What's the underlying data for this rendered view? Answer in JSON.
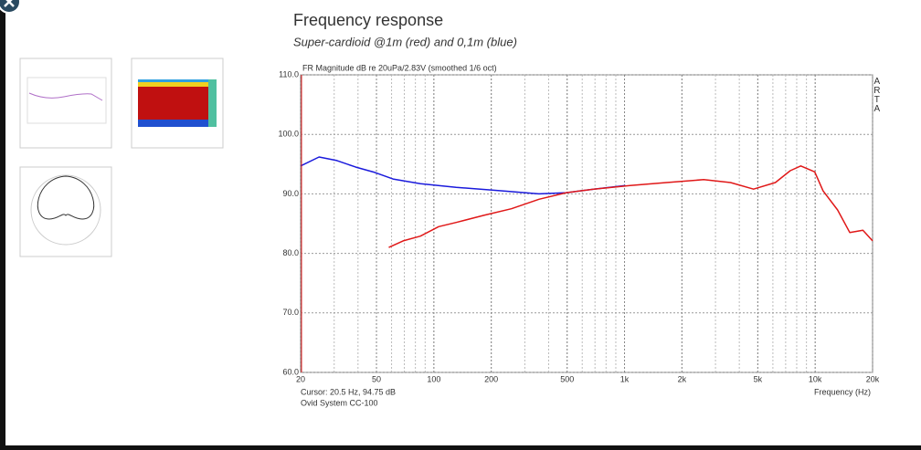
{
  "page": {
    "title": "Frequency response",
    "subtitle": "Super-cardioid @1m (red) and 0,1m (blue)"
  },
  "chart_data": {
    "type": "line",
    "title": "FR Magnitude dB re 20uPa/2.83V (smoothed 1/6 oct)",
    "x_label": "Frequency (Hz)",
    "cursor": "Cursor: 20.5 Hz, 94.75 dB",
    "footnote": "Ovid System CC-100",
    "watermark": "ARTA",
    "log_x": true,
    "grid": true,
    "xlim": [
      20,
      20000
    ],
    "ylim": [
      60,
      110
    ],
    "xticks": [
      20,
      50,
      100,
      200,
      500,
      {
        "value": 1000,
        "label": "1k"
      },
      {
        "value": 2000,
        "label": "2k"
      },
      {
        "value": 5000,
        "label": "5k"
      },
      {
        "value": 10000,
        "label": "10k"
      },
      {
        "value": 20000,
        "label": "20k"
      }
    ],
    "yticks": [
      {
        "value": 60,
        "label": "60.0"
      },
      {
        "value": 70,
        "label": "70.0"
      },
      {
        "value": 80,
        "label": "80.0"
      },
      {
        "value": 90,
        "label": "90.0"
      },
      {
        "value": 100,
        "label": "100.0"
      },
      {
        "value": 110,
        "label": "110.0"
      }
    ],
    "series": [
      {
        "color": "#1a1adc",
        "x": [
          20,
          25,
          31,
          39,
          49,
          61,
          85,
          131,
          229,
          356,
          495,
          690,
          1010
        ],
        "values": [
          94.7,
          96.2,
          95.6,
          94.5,
          93.6,
          92.5,
          91.7,
          91.1,
          90.5,
          90.0,
          90.2,
          90.8,
          91.4
        ]
      },
      {
        "color": "#e01818",
        "x": [
          58,
          69,
          85,
          106,
          131,
          183,
          255,
          356,
          495,
          690,
          1070,
          1660,
          2600,
          3600,
          4750,
          6180,
          7400,
          8400,
          9950,
          11000,
          13100,
          15200,
          17800,
          20000
        ],
        "values": [
          81.0,
          82.1,
          82.9,
          84.5,
          85.2,
          86.4,
          87.5,
          89.1,
          90.2,
          90.8,
          91.4,
          91.9,
          92.4,
          91.9,
          90.8,
          91.9,
          93.9,
          94.7,
          93.7,
          90.5,
          87.3,
          83.5,
          83.9,
          82.1
        ]
      }
    ]
  }
}
